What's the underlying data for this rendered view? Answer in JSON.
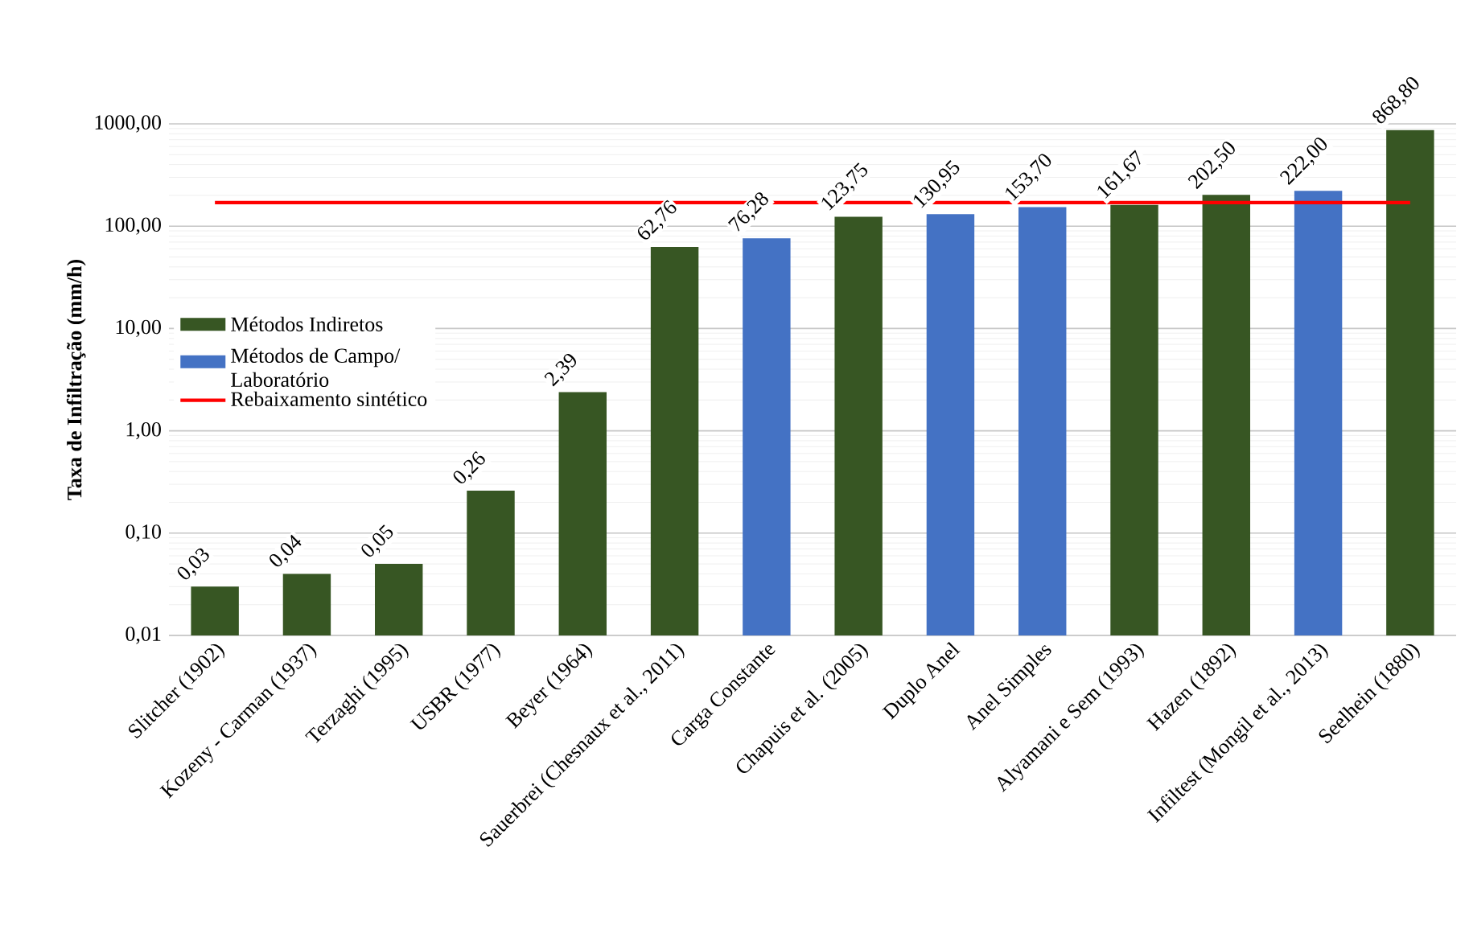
{
  "chart_data": {
    "type": "bar",
    "ylabel": "Taxa de Infiltração (mm/h)",
    "categories": [
      "Slitcher (1902)",
      "Kozeny - Carman (1937)",
      "Terzaghi (1995)",
      "USBR (1977)",
      "Beyer (1964)",
      "Sauerbrei (Chesnaux et al., 2011)",
      "Carga Constante",
      "Chapuis et al. (2005)",
      "Duplo Anel",
      "Anel Simples",
      "Alyamani e Sem (1993)",
      "Hazen (1892)",
      "Infiltest (Mongil et al., 2013)",
      "Seelhein (1880)"
    ],
    "series": [
      {
        "name": "Métodos Indiretos",
        "color": "#375623",
        "values": [
          0.03,
          0.04,
          0.05,
          0.26,
          2.39,
          62.76,
          null,
          123.75,
          null,
          null,
          161.67,
          202.5,
          null,
          868.8
        ],
        "value_labels": [
          "0,03",
          "0,04",
          "0,05",
          "0,26",
          "2,39",
          "62,76",
          null,
          "123,75",
          null,
          null,
          "161,67",
          "202,50",
          null,
          "868,80"
        ]
      },
      {
        "name": "Métodos de Campo/ Laboratório",
        "color": "#4472c4",
        "values": [
          null,
          null,
          null,
          null,
          null,
          null,
          76.28,
          null,
          130.95,
          153.7,
          null,
          null,
          222.0,
          null
        ],
        "value_labels": [
          null,
          null,
          null,
          null,
          null,
          null,
          "76,28",
          null,
          "130,95",
          "153,70",
          null,
          null,
          "222,00",
          null
        ]
      }
    ],
    "ref_lines": [
      {
        "axis": "y",
        "value": 170,
        "label": "Rebaixamento sintético",
        "color": "#ff0000",
        "line_style": "solid"
      }
    ],
    "log": "y",
    "ylim": [
      0.01,
      1000
    ],
    "yticks": [
      {
        "value": 0.01,
        "label": "0,01"
      },
      {
        "value": 0.1,
        "label": "0,10"
      },
      {
        "value": 1,
        "label": "1,00"
      },
      {
        "value": 10,
        "label": "10,00"
      },
      {
        "value": 100,
        "label": "100,00"
      },
      {
        "value": 1000,
        "label": "1000,00"
      }
    ],
    "grid": true,
    "legend": "left"
  }
}
